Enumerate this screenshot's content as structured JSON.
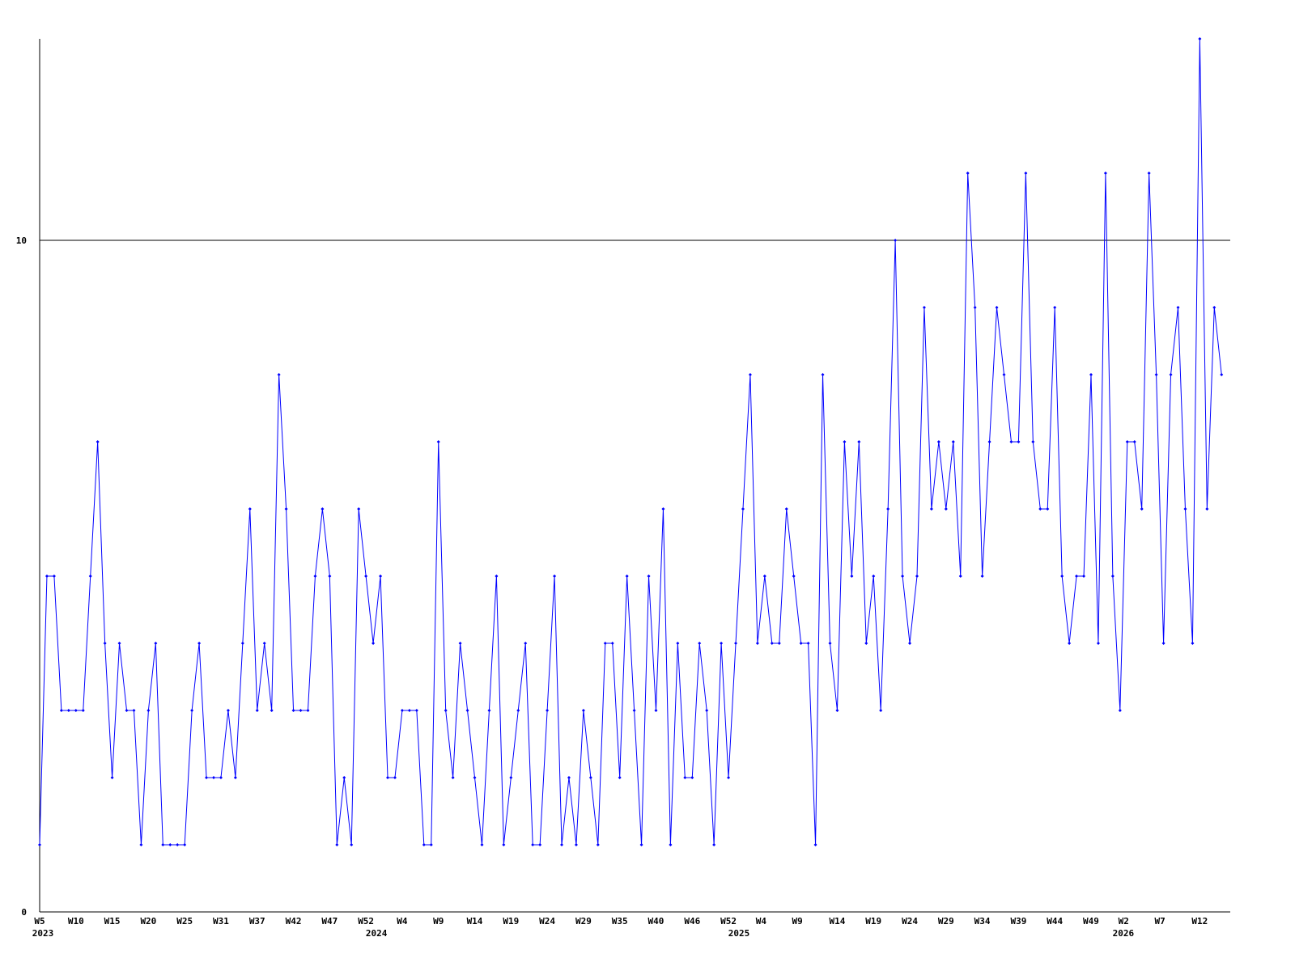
{
  "chart_data": {
    "type": "line",
    "xlim": [
      0,
      164.2
    ],
    "xticks": [
      {
        "value": 0,
        "label": "W5"
      },
      {
        "value": 5,
        "label": "W10"
      },
      {
        "value": 10,
        "label": "W15"
      },
      {
        "value": 15,
        "label": "W20"
      },
      {
        "value": 20,
        "label": "W25"
      },
      {
        "value": 25,
        "label": "W31"
      },
      {
        "value": 30,
        "label": "W37"
      },
      {
        "value": 35,
        "label": "W42"
      },
      {
        "value": 40,
        "label": "W47"
      },
      {
        "value": 45,
        "label": "W52"
      },
      {
        "value": 50,
        "label": "W4"
      },
      {
        "value": 55,
        "label": "W9"
      },
      {
        "value": 60,
        "label": "W14"
      },
      {
        "value": 65,
        "label": "W19"
      },
      {
        "value": 70,
        "label": "W24"
      },
      {
        "value": 75,
        "label": "W29"
      },
      {
        "value": 80,
        "label": "W35"
      },
      {
        "value": 85,
        "label": "W40"
      },
      {
        "value": 90,
        "label": "W46"
      },
      {
        "value": 95,
        "label": "W52"
      },
      {
        "value": 99.5,
        "label": "W4"
      },
      {
        "value": 104.5,
        "label": "W9"
      },
      {
        "value": 110,
        "label": "W14"
      },
      {
        "value": 115,
        "label": "W19"
      },
      {
        "value": 120,
        "label": "W24"
      },
      {
        "value": 125,
        "label": "W29"
      },
      {
        "value": 130,
        "label": "W34"
      },
      {
        "value": 135,
        "label": "W39"
      },
      {
        "value": 140,
        "label": "W44"
      },
      {
        "value": 145,
        "label": "W49"
      },
      {
        "value": 149.5,
        "label": "W2"
      },
      {
        "value": 154.5,
        "label": "W7"
      },
      {
        "value": 160,
        "label": "W12"
      }
    ],
    "year_labels": [
      {
        "value": 0,
        "label": "2023"
      },
      {
        "value": 46,
        "label": "2024"
      },
      {
        "value": 96,
        "label": "2025"
      },
      {
        "value": 149,
        "label": "2026"
      }
    ],
    "ylim": [
      0,
      13
    ],
    "yticks": [
      0,
      10
    ],
    "grid": true,
    "color": "#0000ff",
    "values": [
      1,
      5,
      5,
      3,
      3,
      3,
      3,
      5,
      7,
      4,
      2,
      4,
      3,
      3,
      1,
      3,
      4,
      1,
      1,
      1,
      1,
      3,
      4,
      2,
      2,
      2,
      3,
      2,
      4,
      6,
      3,
      4,
      3,
      8,
      6,
      3,
      3,
      3,
      5,
      6,
      5,
      1,
      2,
      1,
      6,
      5,
      4,
      5,
      2,
      2,
      3,
      3,
      3,
      1,
      1,
      7,
      3,
      2,
      4,
      3,
      2,
      1,
      3,
      5,
      1,
      2,
      3,
      4,
      1,
      1,
      3,
      5,
      1,
      2,
      1,
      3,
      2,
      1,
      4,
      4,
      2,
      5,
      3,
      1,
      5,
      3,
      6,
      1,
      4,
      2,
      2,
      4,
      3,
      1,
      4,
      2,
      4,
      6,
      8,
      4,
      5,
      4,
      4,
      6,
      5,
      4,
      4,
      1,
      8,
      4,
      3,
      7,
      5,
      7,
      4,
      5,
      3,
      6,
      10,
      5,
      4,
      5,
      9,
      6,
      7,
      6,
      7,
      5,
      11,
      9,
      5,
      7,
      9,
      8,
      7,
      7,
      11,
      7,
      6,
      6,
      9,
      5,
      4,
      5,
      5,
      8,
      4,
      11,
      5,
      3,
      7,
      7,
      6,
      11,
      8,
      4,
      8,
      9,
      6,
      4,
      13,
      6,
      9,
      8
    ]
  }
}
